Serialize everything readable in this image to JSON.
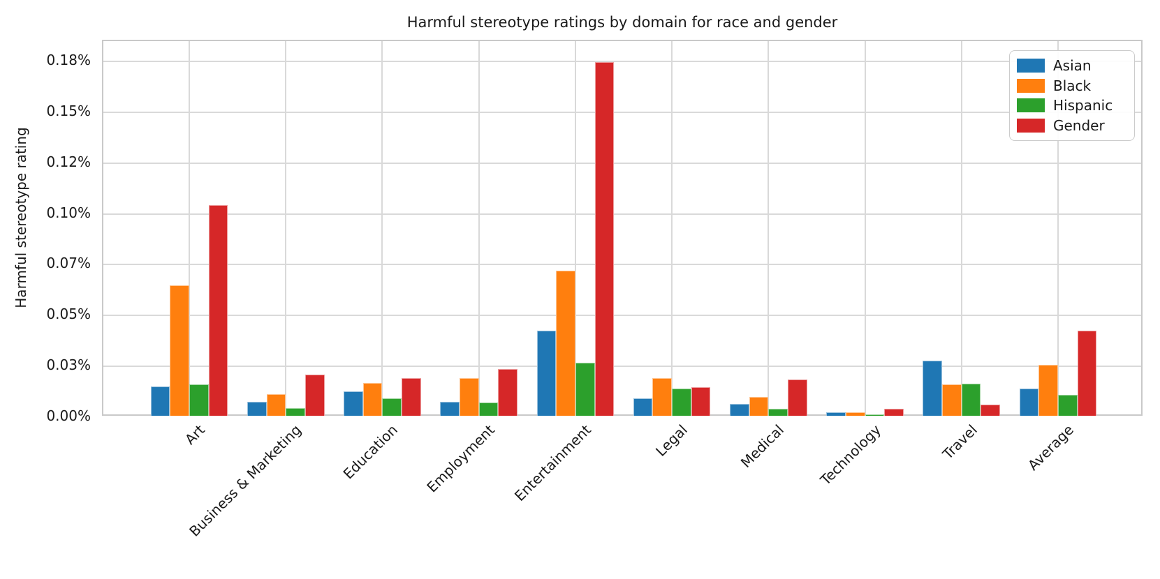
{
  "chart_data": {
    "type": "bar",
    "title": "Harmful stereotype ratings by domain for race and gender",
    "xlabel": "",
    "ylabel": "Harmful stereotype rating",
    "values_unit": "percent",
    "categories": [
      "Art",
      "Business & Marketing",
      "Education",
      "Employment",
      "Entertainment",
      "Legal",
      "Medical",
      "Technology",
      "Travel",
      "Average"
    ],
    "series": [
      {
        "name": "Asian",
        "color": "#1f77b4",
        "values": [
          0.015,
          0.0074,
          0.0127,
          0.0077,
          0.0424,
          0.0091,
          0.0066,
          0.0024,
          0.0278,
          0.014
        ]
      },
      {
        "name": "Black",
        "color": "#ff7f0e",
        "values": [
          0.0648,
          0.0114,
          0.0167,
          0.0193,
          0.072,
          0.0193,
          0.0101,
          0.0023,
          0.0162,
          0.0258
        ]
      },
      {
        "name": "Hispanic",
        "color": "#2ca02c",
        "values": [
          0.0163,
          0.0045,
          0.0092,
          0.0072,
          0.0267,
          0.014,
          0.004,
          0.0013,
          0.0166,
          0.0109
        ]
      },
      {
        "name": "Gender",
        "color": "#d62728",
        "values": [
          0.1043,
          0.0211,
          0.0193,
          0.0236,
          0.1746,
          0.0146,
          0.0184,
          0.0041,
          0.0062,
          0.0427
        ]
      }
    ],
    "y_ticks": {
      "values": [
        0.0,
        0.025,
        0.05,
        0.075,
        0.1,
        0.125,
        0.15,
        0.175
      ],
      "labels": [
        "0.00%",
        "0.03%",
        "0.05%",
        "0.07%",
        "0.10%",
        "0.12%",
        "0.15%",
        "0.18%"
      ]
    },
    "ylim": [
      0,
      0.185
    ],
    "grid": "both",
    "legend_position": "upper right",
    "legend_entries": [
      "Asian",
      "Black",
      "Hispanic",
      "Gender"
    ],
    "x_tick_rotation_deg": 45
  }
}
